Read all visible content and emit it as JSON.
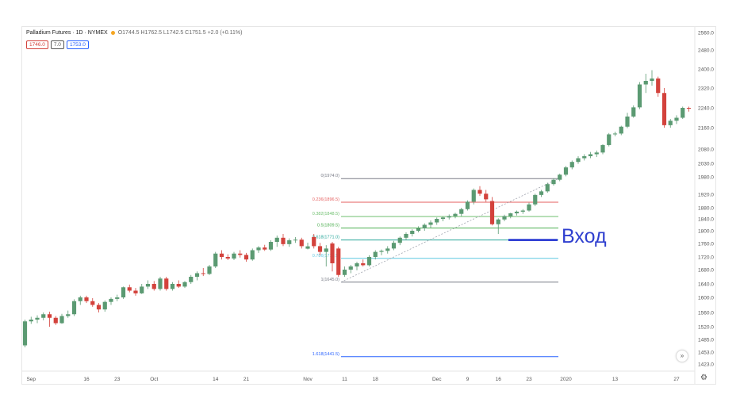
{
  "header": {
    "title": "Palladium Futures · 1D · NYMEX",
    "ohlc": "O1744.5 H1762.5 L1742.5 C1751.5 +2.0 (+0.11%)"
  },
  "badges": {
    "sell": "1746.0",
    "spread": "7.0",
    "buy": "1753.0"
  },
  "annotation": {
    "entry_label": "Вход"
  },
  "icons": {
    "scroll": "double-chevron-right-icon",
    "settings": "gear-icon"
  },
  "colors": {
    "up": "#5b9a72",
    "down": "#d3423c",
    "entry": "#1b2ccf",
    "fib_0": "#787b86",
    "fib_236": "#e55f5f",
    "fib_382": "#6fbf6f",
    "fib_5": "#4caf50",
    "fib_618": "#26a69a",
    "fib_786": "#5ec8e0",
    "fib_1": "#787b86",
    "fib_1618": "#2962ff"
  },
  "chart_data": {
    "type": "candlestick",
    "y_axis": {
      "range": [
        1380,
        2580
      ],
      "ticks": [
        "2560.0",
        "2480.0",
        "2400.0",
        "2320.0",
        "2240.0",
        "2160.0",
        "2080.0",
        "2030.0",
        "1980.0",
        "1920.0",
        "1880.0",
        "1840.0",
        "1800.0",
        "1760.0",
        "1720.0",
        "1680.0",
        "1640.0",
        "1600.0",
        "1560.0",
        "1520.0",
        "1485.0",
        "1453.0",
        "1423.0"
      ]
    },
    "x_axis": {
      "labels": [
        {
          "text": "Sep",
          "i": 1
        },
        {
          "text": "16",
          "i": 10
        },
        {
          "text": "23",
          "i": 15
        },
        {
          "text": "Oct",
          "i": 21
        },
        {
          "text": "14",
          "i": 31
        },
        {
          "text": "21",
          "i": 36
        },
        {
          "text": "Nov",
          "i": 46
        },
        {
          "text": "11",
          "i": 52
        },
        {
          "text": "18",
          "i": 57
        },
        {
          "text": "Dec",
          "i": 67
        },
        {
          "text": "9",
          "i": 72
        },
        {
          "text": "16",
          "i": 77
        },
        {
          "text": "23",
          "i": 82
        },
        {
          "text": "2020",
          "i": 88
        },
        {
          "text": "13",
          "i": 96
        },
        {
          "text": "27",
          "i": 106
        }
      ]
    },
    "candles": [
      [
        1470,
        1540,
        1465,
        1535
      ],
      [
        1535,
        1548,
        1528,
        1540
      ],
      [
        1540,
        1552,
        1530,
        1545
      ],
      [
        1545,
        1560,
        1538,
        1555
      ],
      [
        1555,
        1562,
        1520,
        1545
      ],
      [
        1545,
        1550,
        1525,
        1530
      ],
      [
        1530,
        1556,
        1528,
        1550
      ],
      [
        1550,
        1565,
        1545,
        1555
      ],
      [
        1555,
        1595,
        1550,
        1590
      ],
      [
        1590,
        1605,
        1580,
        1600
      ],
      [
        1600,
        1605,
        1585,
        1590
      ],
      [
        1590,
        1598,
        1575,
        1580
      ],
      [
        1580,
        1585,
        1560,
        1568
      ],
      [
        1568,
        1592,
        1562,
        1588
      ],
      [
        1588,
        1600,
        1580,
        1596
      ],
      [
        1596,
        1608,
        1590,
        1600
      ],
      [
        1600,
        1632,
        1596,
        1630
      ],
      [
        1630,
        1638,
        1615,
        1620
      ],
      [
        1620,
        1628,
        1605,
        1612
      ],
      [
        1612,
        1640,
        1610,
        1632
      ],
      [
        1632,
        1650,
        1625,
        1640
      ],
      [
        1640,
        1648,
        1620,
        1625
      ],
      [
        1625,
        1660,
        1620,
        1655
      ],
      [
        1655,
        1660,
        1620,
        1625
      ],
      [
        1625,
        1645,
        1620,
        1640
      ],
      [
        1640,
        1650,
        1628,
        1632
      ],
      [
        1632,
        1648,
        1628,
        1645
      ],
      [
        1645,
        1665,
        1640,
        1660
      ],
      [
        1660,
        1675,
        1650,
        1670
      ],
      [
        1670,
        1685,
        1662,
        1668
      ],
      [
        1668,
        1695,
        1665,
        1690
      ],
      [
        1690,
        1735,
        1685,
        1730
      ],
      [
        1730,
        1740,
        1712,
        1720
      ],
      [
        1720,
        1728,
        1710,
        1715
      ],
      [
        1715,
        1735,
        1710,
        1730
      ],
      [
        1730,
        1740,
        1718,
        1726
      ],
      [
        1726,
        1732,
        1705,
        1712
      ],
      [
        1712,
        1745,
        1708,
        1740
      ],
      [
        1740,
        1752,
        1732,
        1748
      ],
      [
        1748,
        1756,
        1738,
        1742
      ],
      [
        1742,
        1770,
        1738,
        1765
      ],
      [
        1765,
        1785,
        1750,
        1778
      ],
      [
        1778,
        1790,
        1752,
        1758
      ],
      [
        1758,
        1776,
        1750,
        1770
      ],
      [
        1770,
        1780,
        1762,
        1772
      ],
      [
        1772,
        1778,
        1745,
        1752
      ],
      [
        1744.5,
        1762.5,
        1742.5,
        1751.5
      ],
      [
        1780,
        1790,
        1745,
        1752
      ],
      [
        1752,
        1762,
        1725,
        1735
      ],
      [
        1735,
        1755,
        1690,
        1745
      ],
      [
        1760,
        1765,
        1675,
        1700
      ],
      [
        1745,
        1750,
        1660,
        1665
      ],
      [
        1665,
        1690,
        1660,
        1680
      ],
      [
        1680,
        1695,
        1670,
        1690
      ],
      [
        1690,
        1705,
        1678,
        1700
      ],
      [
        1700,
        1712,
        1690,
        1694
      ],
      [
        1694,
        1725,
        1690,
        1720
      ],
      [
        1720,
        1740,
        1712,
        1735
      ],
      [
        1735,
        1742,
        1725,
        1738
      ],
      [
        1738,
        1752,
        1730,
        1745
      ],
      [
        1745,
        1768,
        1740,
        1762
      ],
      [
        1762,
        1782,
        1755,
        1778
      ],
      [
        1778,
        1795,
        1770,
        1790
      ],
      [
        1790,
        1805,
        1782,
        1800
      ],
      [
        1800,
        1815,
        1795,
        1808
      ],
      [
        1808,
        1825,
        1800,
        1820
      ],
      [
        1820,
        1835,
        1810,
        1828
      ],
      [
        1828,
        1845,
        1820,
        1840
      ],
      [
        1840,
        1848,
        1832,
        1845
      ],
      [
        1845,
        1856,
        1838,
        1850
      ],
      [
        1850,
        1862,
        1842,
        1858
      ],
      [
        1858,
        1880,
        1850,
        1875
      ],
      [
        1875,
        1902,
        1870,
        1898
      ],
      [
        1898,
        1940,
        1890,
        1935
      ],
      [
        1935,
        1948,
        1915,
        1922
      ],
      [
        1922,
        1935,
        1898,
        1905
      ],
      [
        1900,
        1912,
        1818,
        1822
      ],
      [
        1822,
        1842,
        1790,
        1838
      ],
      [
        1838,
        1855,
        1832,
        1850
      ],
      [
        1850,
        1862,
        1842,
        1860
      ],
      [
        1860,
        1870,
        1852,
        1866
      ],
      [
        1866,
        1875,
        1858,
        1870
      ],
      [
        1870,
        1895,
        1866,
        1890
      ],
      [
        1890,
        1922,
        1885,
        1918
      ],
      [
        1918,
        1935,
        1912,
        1930
      ],
      [
        1930,
        1960,
        1925,
        1955
      ],
      [
        1955,
        1975,
        1950,
        1970
      ],
      [
        1970,
        1992,
        1965,
        1988
      ],
      [
        1988,
        2020,
        1982,
        2015
      ],
      [
        2015,
        2040,
        2008,
        2035
      ],
      [
        2035,
        2055,
        2028,
        2048
      ],
      [
        2048,
        2062,
        2040,
        2055
      ],
      [
        2055,
        2070,
        2048,
        2062
      ],
      [
        2062,
        2075,
        2052,
        2068
      ],
      [
        2068,
        2098,
        2062,
        2095
      ],
      [
        2095,
        2140,
        2090,
        2135
      ],
      [
        2135,
        2145,
        2128,
        2138
      ],
      [
        2138,
        2168,
        2132,
        2164
      ],
      [
        2164,
        2220,
        2158,
        2205
      ],
      [
        2205,
        2250,
        2200,
        2242
      ],
      [
        2242,
        2345,
        2235,
        2335
      ],
      [
        2335,
        2380,
        2300,
        2350
      ],
      [
        2350,
        2395,
        2330,
        2360
      ],
      [
        2360,
        2368,
        2285,
        2300
      ],
      [
        2300,
        2320,
        2160,
        2170
      ],
      [
        2170,
        2195,
        2160,
        2188
      ],
      [
        2188,
        2210,
        2175,
        2200
      ],
      [
        2200,
        2245,
        2195,
        2240
      ],
      [
        2240,
        2245,
        2225,
        2238
      ]
    ],
    "fibonacci": [
      {
        "label": "0(1974.0)",
        "price": 1974.0,
        "color": "#787b86"
      },
      {
        "label": "0.236(1896.5)",
        "price": 1896.5,
        "color": "#e55f5f"
      },
      {
        "label": "0.382(1848.5)",
        "price": 1848.5,
        "color": "#6fbf6f"
      },
      {
        "label": "0.5(1809.5)",
        "price": 1809.5,
        "color": "#4caf50"
      },
      {
        "label": "0.618(1771.0)",
        "price": 1771.0,
        "color": "#26a69a"
      },
      {
        "label": "0.786(1715.5)",
        "price": 1715.5,
        "color": "#5ec8e0"
      },
      {
        "label": "1(1645.0)",
        "price": 1645.0,
        "color": "#787b86"
      },
      {
        "label": "1.618(1441.5)",
        "price": 1441.5,
        "color": "#2962ff"
      }
    ],
    "entry_level": 1771.0,
    "grid": false
  }
}
